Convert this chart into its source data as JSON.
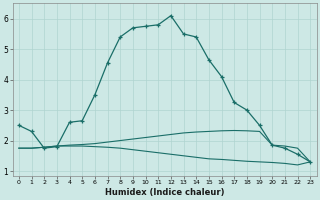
{
  "xlabel": "Humidex (Indice chaleur)",
  "bg_color": "#cde8e5",
  "grid_color": "#b0d4d0",
  "line_color": "#1a6e68",
  "xlim": [
    -0.5,
    23.5
  ],
  "ylim": [
    0.85,
    6.5
  ],
  "yticks": [
    1,
    2,
    3,
    4,
    5,
    6
  ],
  "xticks": [
    0,
    1,
    2,
    3,
    4,
    5,
    6,
    7,
    8,
    9,
    10,
    11,
    12,
    13,
    14,
    15,
    16,
    17,
    18,
    19,
    20,
    21,
    22,
    23
  ],
  "line1_x": [
    0,
    1,
    2,
    3,
    4,
    5,
    6,
    7,
    8,
    9,
    10,
    11,
    12,
    13,
    14,
    15,
    16,
    17,
    18,
    19,
    20,
    21,
    22,
    23
  ],
  "line1_y": [
    2.5,
    2.3,
    1.75,
    1.8,
    2.6,
    2.65,
    3.5,
    4.55,
    5.4,
    5.7,
    5.75,
    5.8,
    6.1,
    5.5,
    5.4,
    4.65,
    4.1,
    3.25,
    3.0,
    2.5,
    1.85,
    1.75,
    1.55,
    1.3
  ],
  "line2_x": [
    0,
    1,
    2,
    3,
    4,
    5,
    6,
    7,
    8,
    9,
    10,
    11,
    12,
    13,
    14,
    15,
    16,
    17,
    18,
    19,
    20,
    21,
    22,
    23
  ],
  "line2_y": [
    1.75,
    1.75,
    1.78,
    1.82,
    1.85,
    1.87,
    1.9,
    1.95,
    2.0,
    2.05,
    2.1,
    2.15,
    2.2,
    2.25,
    2.28,
    2.3,
    2.32,
    2.33,
    2.32,
    2.3,
    1.85,
    1.82,
    1.75,
    1.3
  ],
  "line3_x": [
    0,
    1,
    2,
    3,
    4,
    5,
    6,
    7,
    8,
    9,
    10,
    11,
    12,
    13,
    14,
    15,
    16,
    17,
    18,
    19,
    20,
    21,
    22,
    23
  ],
  "line3_y": [
    1.75,
    1.75,
    1.78,
    1.82,
    1.82,
    1.82,
    1.8,
    1.78,
    1.75,
    1.7,
    1.65,
    1.6,
    1.55,
    1.5,
    1.45,
    1.4,
    1.38,
    1.35,
    1.32,
    1.3,
    1.28,
    1.25,
    1.2,
    1.3
  ]
}
